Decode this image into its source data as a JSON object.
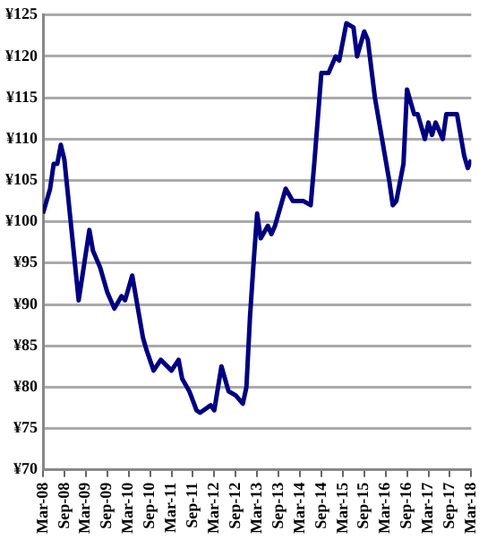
{
  "chart_data": {
    "type": "line",
    "x": [
      "2008-03",
      "2008-05",
      "2008-06",
      "2008-07",
      "2008-08",
      "2008-09",
      "2009-01",
      "2009-04",
      "2009-05",
      "2009-07",
      "2009-09",
      "2009-11",
      "2010-01",
      "2010-02",
      "2010-04",
      "2010-05",
      "2010-07",
      "2010-08",
      "2010-10",
      "2010-12",
      "2011-03",
      "2011-05",
      "2011-06",
      "2011-08",
      "2011-10",
      "2011-11",
      "2012-02",
      "2012-03",
      "2012-05",
      "2012-07",
      "2012-09",
      "2012-11",
      "2012-12",
      "2013-01",
      "2013-02",
      "2013-03",
      "2013-04",
      "2013-06",
      "2013-07",
      "2013-08",
      "2013-11",
      "2014-01",
      "2014-04",
      "2014-06",
      "2014-07",
      "2014-09",
      "2014-11",
      "2015-01",
      "2015-02",
      "2015-04",
      "2015-06",
      "2015-07",
      "2015-09",
      "2015-10",
      "2015-12",
      "2016-02",
      "2016-04",
      "2016-05",
      "2016-06",
      "2016-08",
      "2016-09",
      "2016-11",
      "2016-12",
      "2017-02",
      "2017-03",
      "2017-04",
      "2017-05",
      "2017-07",
      "2017-08",
      "2017-11",
      "2018-01",
      "2018-02",
      "2018-03"
    ],
    "series": [
      {
        "color": "#000080",
        "values": [
          101,
          104,
          107,
          107,
          109.3,
          107.5,
          90.5,
          99,
          96.5,
          94.5,
          91.5,
          89.5,
          91,
          90.5,
          93.5,
          91,
          86,
          84.5,
          82,
          83.3,
          82,
          83.3,
          81,
          79.5,
          77.2,
          76.9,
          77.8,
          77.2,
          82.5,
          79.5,
          79,
          78,
          80,
          88.5,
          95,
          101,
          98,
          99.5,
          98.5,
          99.5,
          104,
          102.5,
          102.5,
          102,
          107,
          118,
          118,
          120,
          119.5,
          124,
          123.5,
          120,
          123,
          122,
          115,
          110,
          105,
          102,
          102.5,
          107,
          116,
          113,
          113,
          110,
          112,
          110.5,
          112,
          110,
          113,
          113,
          108,
          106.5,
          107.5
        ]
      }
    ],
    "xlim": [
      "2008-03",
      "2018-03"
    ],
    "xticks": [
      {
        "value": "2008-03",
        "label": "Mar-08"
      },
      {
        "value": "2008-09",
        "label": "Sep-08"
      },
      {
        "value": "2009-03",
        "label": "Mar-09"
      },
      {
        "value": "2009-09",
        "label": "Sep-09"
      },
      {
        "value": "2010-03",
        "label": "Mar-10"
      },
      {
        "value": "2010-09",
        "label": "Sep-10"
      },
      {
        "value": "2011-03",
        "label": "Mar-11"
      },
      {
        "value": "2011-09",
        "label": "Sep-11"
      },
      {
        "value": "2012-03",
        "label": "Mar-12"
      },
      {
        "value": "2012-09",
        "label": "Sep-12"
      },
      {
        "value": "2013-03",
        "label": "Mar-13"
      },
      {
        "value": "2013-09",
        "label": "Sep-13"
      },
      {
        "value": "2014-03",
        "label": "Mar-14"
      },
      {
        "value": "2014-09",
        "label": "Sep-14"
      },
      {
        "value": "2015-03",
        "label": "Mar-15"
      },
      {
        "value": "2015-09",
        "label": "Sep-15"
      },
      {
        "value": "2016-03",
        "label": "Mar-16"
      },
      {
        "value": "2016-09",
        "label": "Sep-16"
      },
      {
        "value": "2017-03",
        "label": "Mar-17"
      },
      {
        "value": "2017-09",
        "label": "Sep-17"
      },
      {
        "value": "2018-03",
        "label": "Mar-18"
      }
    ],
    "ylim": [
      70,
      125
    ],
    "yticks": [
      {
        "value": 70,
        "label": "¥70"
      },
      {
        "value": 75,
        "label": "¥75"
      },
      {
        "value": 80,
        "label": "¥80"
      },
      {
        "value": 85,
        "label": "¥85"
      },
      {
        "value": 90,
        "label": "¥90"
      },
      {
        "value": 95,
        "label": "¥95"
      },
      {
        "value": 100,
        "label": "¥100"
      },
      {
        "value": 105,
        "label": "¥105"
      },
      {
        "value": 110,
        "label": "¥110"
      },
      {
        "value": 115,
        "label": "¥115"
      },
      {
        "value": 120,
        "label": "¥120"
      },
      {
        "value": 125,
        "label": "¥125"
      }
    ],
    "grid": "y",
    "legend": false,
    "marker": "none",
    "line_style": "solid"
  }
}
